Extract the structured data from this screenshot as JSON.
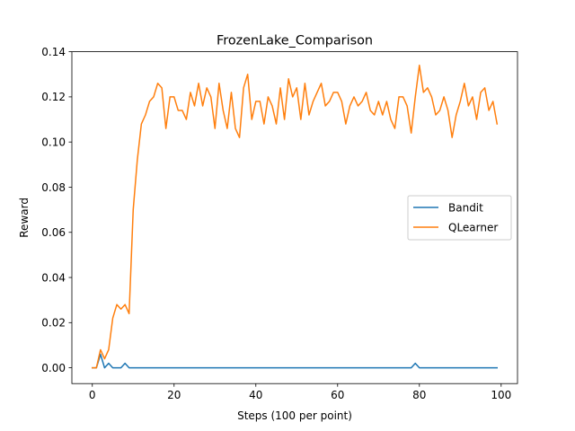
{
  "chart_data": {
    "type": "line",
    "title": "FrozenLake_Comparison",
    "xlabel": "Steps (100 per point)",
    "ylabel": "Reward",
    "xlim": [
      -5,
      104
    ],
    "ylim": [
      -0.007,
      0.14
    ],
    "xticks": [
      0,
      20,
      40,
      60,
      80,
      100
    ],
    "xtick_labels": [
      "0",
      "20",
      "40",
      "60",
      "80",
      "100"
    ],
    "yticks": [
      0.0,
      0.02,
      0.04,
      0.06,
      0.08,
      0.1,
      0.12,
      0.14
    ],
    "ytick_labels": [
      "0.00",
      "0.02",
      "0.04",
      "0.06",
      "0.08",
      "0.10",
      "0.12",
      "0.14"
    ],
    "grid": false,
    "legend_position": "center-right",
    "series": [
      {
        "name": "Bandit",
        "color": "#1f77b4",
        "values": [
          0,
          0,
          0.006,
          0,
          0.002,
          0,
          0,
          0,
          0.002,
          0,
          0,
          0,
          0,
          0,
          0,
          0,
          0,
          0,
          0,
          0,
          0,
          0,
          0,
          0,
          0,
          0,
          0,
          0,
          0,
          0,
          0,
          0,
          0,
          0,
          0,
          0,
          0,
          0,
          0,
          0,
          0,
          0,
          0,
          0,
          0,
          0,
          0,
          0,
          0,
          0,
          0,
          0,
          0,
          0,
          0,
          0,
          0,
          0,
          0,
          0,
          0,
          0,
          0,
          0,
          0,
          0,
          0,
          0,
          0,
          0,
          0,
          0,
          0,
          0,
          0,
          0,
          0,
          0,
          0,
          0.002,
          0,
          0,
          0,
          0,
          0,
          0,
          0,
          0,
          0,
          0,
          0,
          0,
          0,
          0,
          0,
          0,
          0,
          0,
          0,
          0
        ]
      },
      {
        "name": "QLearner",
        "color": "#ff7f0e",
        "values": [
          0,
          0,
          0.008,
          0.004,
          0.008,
          0.022,
          0.028,
          0.026,
          0.028,
          0.024,
          0.07,
          0.092,
          0.108,
          0.112,
          0.118,
          0.12,
          0.126,
          0.124,
          0.106,
          0.12,
          0.12,
          0.114,
          0.114,
          0.11,
          0.122,
          0.116,
          0.126,
          0.116,
          0.124,
          0.12,
          0.106,
          0.126,
          0.114,
          0.106,
          0.122,
          0.106,
          0.102,
          0.124,
          0.13,
          0.11,
          0.118,
          0.118,
          0.108,
          0.12,
          0.116,
          0.108,
          0.124,
          0.11,
          0.128,
          0.12,
          0.124,
          0.11,
          0.126,
          0.112,
          0.118,
          0.122,
          0.126,
          0.116,
          0.118,
          0.122,
          0.122,
          0.118,
          0.108,
          0.116,
          0.12,
          0.116,
          0.118,
          0.122,
          0.114,
          0.112,
          0.118,
          0.112,
          0.118,
          0.11,
          0.106,
          0.12,
          0.12,
          0.116,
          0.104,
          0.12,
          0.134,
          0.122,
          0.124,
          0.12,
          0.112,
          0.114,
          0.12,
          0.114,
          0.102,
          0.112,
          0.118,
          0.126,
          0.116,
          0.12,
          0.11,
          0.122,
          0.124,
          0.114,
          0.118,
          0.108
        ]
      }
    ]
  }
}
